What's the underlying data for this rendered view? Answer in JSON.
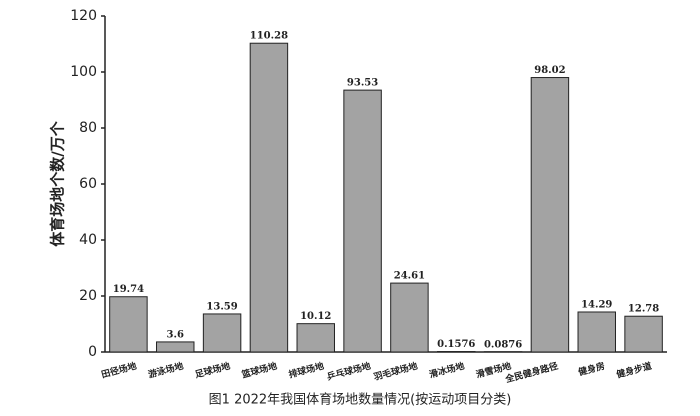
{
  "chart_data": {
    "type": "bar",
    "title": "图1 2022年我国体育场地数量情况(按运动项目分类)",
    "y_label": "体育场地个数/万个",
    "categories": [
      "田径场地",
      "游泳场地",
      "足球场地",
      "篮球场地",
      "排球场地",
      "乒乓球场地",
      "羽毛球场地",
      "滑冰场地",
      "滑雪场地",
      "全民健身路径",
      "健身房",
      "健身步道"
    ],
    "values": [
      19.74,
      3.6,
      13.59,
      110.28,
      10.12,
      93.53,
      24.61,
      0.1576,
      0.0876,
      98.02,
      14.29,
      12.78
    ],
    "color": "#a3a3a3",
    "ylim": [
      0,
      120
    ],
    "yticks": [
      0,
      20,
      40,
      60,
      80,
      100,
      120
    ],
    "grid": false
  }
}
